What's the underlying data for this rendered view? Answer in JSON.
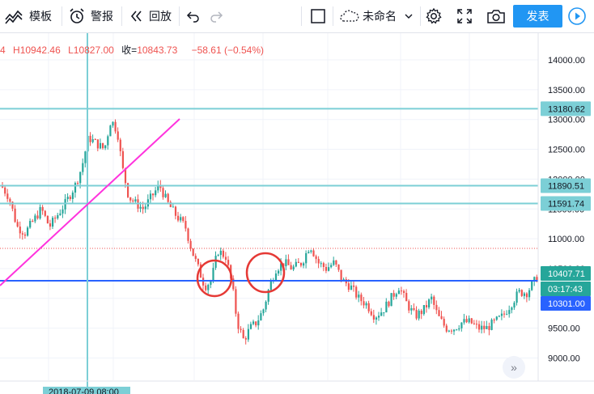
{
  "toolbar": {
    "template_label": "模板",
    "alert_label": "警报",
    "replay_label": "回放",
    "layout_name": "未命名",
    "publish_label": "发表"
  },
  "ohlc": {
    "open_fragment": "4",
    "high": "H10942.46",
    "low": "L10827.00",
    "close_label": "收=",
    "close_value": "10843.73",
    "change": "−58.61 (−0.54%)"
  },
  "price_axis": {
    "ticks": [
      "14000.00",
      "13500.00",
      "13000.00",
      "12500.00",
      "12000.00",
      "11500.00",
      "11000.00",
      "10500.00",
      "10000.00",
      "9500.00",
      "9000.00"
    ],
    "labels": [
      {
        "text": "13180.62",
        "value": 13180.62,
        "kind": "hline"
      },
      {
        "text": "11890.51",
        "value": 11890.51,
        "kind": "hline"
      },
      {
        "text": "11591.74",
        "value": 11591.74,
        "kind": "hline"
      },
      {
        "text": "10407.71",
        "value": 10407.71,
        "kind": "last"
      },
      {
        "text": "03:17:43",
        "value": 10301.0,
        "kind": "timer"
      },
      {
        "text": "10301.00",
        "value": 10301.0,
        "kind": "hline-blue"
      }
    ]
  },
  "time_axis": {
    "crosshair_label": "2018-07-09   08:00"
  },
  "colors": {
    "up": "#26a69a",
    "down": "#ef5350",
    "hline": "#7ccfd6",
    "blue_line": "#2962ff",
    "trend": "#ff33dd",
    "circle": "#e53935"
  }
}
